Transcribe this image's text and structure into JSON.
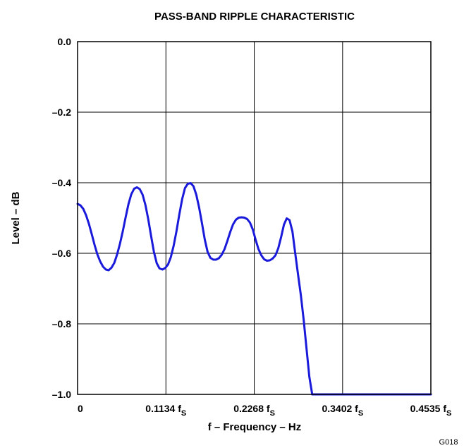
{
  "chart_data": {
    "type": "line",
    "title": "PASS-BAND RIPPLE CHARACTERISTIC",
    "xlabel": "f – Frequency – Hz",
    "ylabel": "Level – dB",
    "figure_code": "G018",
    "xlim": [
      0,
      0.4535
    ],
    "ylim": [
      -1.0,
      0.0
    ],
    "grid": true,
    "x_ticks": [
      {
        "value": 0,
        "label": "0",
        "subscript": ""
      },
      {
        "value": 0.1134,
        "label": "0.1134 f",
        "subscript": "S"
      },
      {
        "value": 0.2268,
        "label": "0.2268 f",
        "subscript": "S"
      },
      {
        "value": 0.3402,
        "label": "0.3402 f",
        "subscript": "S"
      },
      {
        "value": 0.4535,
        "label": "0.4535 f",
        "subscript": "S"
      }
    ],
    "y_ticks": [
      {
        "value": 0.0,
        "label": "0.0"
      },
      {
        "value": -0.2,
        "label": "–0.2"
      },
      {
        "value": -0.4,
        "label": "–0.4"
      },
      {
        "value": -0.6,
        "label": "–0.6"
      },
      {
        "value": -0.8,
        "label": "–0.8"
      },
      {
        "value": -1.0,
        "label": "–1.0"
      }
    ],
    "series": [
      {
        "color": "#1a1adb",
        "x": [
          0.0,
          0.0036,
          0.0073,
          0.0109,
          0.0145,
          0.0181,
          0.0218,
          0.0254,
          0.029,
          0.0327,
          0.0363,
          0.0399,
          0.0435,
          0.0472,
          0.0508,
          0.0544,
          0.0581,
          0.0617,
          0.0653,
          0.0689,
          0.0726,
          0.0762,
          0.0798,
          0.0835,
          0.0871,
          0.0907,
          0.0943,
          0.098,
          0.1016,
          0.1052,
          0.1089,
          0.1125,
          0.1161,
          0.1197,
          0.1234,
          0.127,
          0.1306,
          0.1343,
          0.1379,
          0.1415,
          0.1451,
          0.1488,
          0.1524,
          0.156,
          0.1597,
          0.1633,
          0.1669,
          0.1705,
          0.1742,
          0.1778,
          0.1814,
          0.1851,
          0.1887,
          0.1923,
          0.1959,
          0.1996,
          0.2032,
          0.2068,
          0.2105,
          0.2141,
          0.2177,
          0.2213,
          0.225,
          0.2286,
          0.2322,
          0.2359,
          0.2395,
          0.2431,
          0.2467,
          0.2504,
          0.254,
          0.2576,
          0.2613,
          0.2649,
          0.2685,
          0.2721,
          0.2758,
          0.2794,
          0.283,
          0.2867,
          0.2903,
          0.2939,
          0.2975,
          0.3012,
          0.3048,
          0.3084,
          0.3121,
          0.3157,
          0.3193,
          0.3229,
          0.3266,
          0.3302,
          0.3338,
          0.3375,
          0.3411,
          0.3447,
          0.3483,
          0.352,
          0.3556,
          0.3592,
          0.3629,
          0.3665,
          0.3701,
          0.3737,
          0.3774,
          0.381,
          0.3846,
          0.3883,
          0.3919,
          0.3955,
          0.3991,
          0.4028,
          0.4064,
          0.41,
          0.4137,
          0.4173,
          0.4209,
          0.4245,
          0.4282,
          0.43,
          0.4318,
          0.4336,
          0.4354,
          0.4373,
          0.4391,
          0.4409,
          0.4427,
          0.4445,
          0.4463,
          0.4481,
          0.4499,
          0.4508,
          0.4517,
          0.4526,
          0.4535
        ],
        "y": [
          -0.46,
          -0.464,
          -0.474,
          -0.492,
          -0.516,
          -0.545,
          -0.576,
          -0.603,
          -0.623,
          -0.638,
          -0.646,
          -0.648,
          -0.641,
          -0.627,
          -0.603,
          -0.573,
          -0.537,
          -0.498,
          -0.461,
          -0.433,
          -0.417,
          -0.413,
          -0.418,
          -0.434,
          -0.463,
          -0.503,
          -0.55,
          -0.596,
          -0.628,
          -0.643,
          -0.646,
          -0.642,
          -0.632,
          -0.611,
          -0.578,
          -0.537,
          -0.49,
          -0.446,
          -0.415,
          -0.403,
          -0.401,
          -0.41,
          -0.434,
          -0.47,
          -0.515,
          -0.561,
          -0.596,
          -0.613,
          -0.618,
          -0.618,
          -0.614,
          -0.604,
          -0.588,
          -0.565,
          -0.54,
          -0.518,
          -0.505,
          -0.499,
          -0.498,
          -0.499,
          -0.503,
          -0.513,
          -0.533,
          -0.562,
          -0.588,
          -0.606,
          -0.617,
          -0.621,
          -0.62,
          -0.615,
          -0.606,
          -0.586,
          -0.554,
          -0.519,
          -0.501,
          -0.506,
          -0.538,
          -0.6,
          -0.66,
          -0.72,
          -0.79,
          -0.87,
          -0.95,
          -1.0,
          -1.0,
          -1.0,
          -1.0,
          -1.0,
          -1.0,
          -1.0,
          -1.0,
          -1.0,
          -1.0,
          -1.0,
          -1.0,
          -1.0,
          -1.0,
          -1.0,
          -1.0,
          -1.0,
          -1.0,
          -1.0,
          -1.0,
          -1.0,
          -1.0,
          -1.0,
          -1.0,
          -1.0,
          -1.0,
          -1.0,
          -1.0,
          -1.0,
          -1.0,
          -1.0,
          -1.0,
          -1.0,
          -1.0,
          -1.0,
          -1.0,
          -1.0,
          -1.0,
          -1.0,
          -1.0,
          -1.0,
          -1.0,
          -1.0,
          -1.0,
          -1.0,
          -1.0,
          -1.0,
          -1.0,
          -1.0,
          -1.0,
          -1.0,
          -1.0
        ]
      }
    ]
  }
}
